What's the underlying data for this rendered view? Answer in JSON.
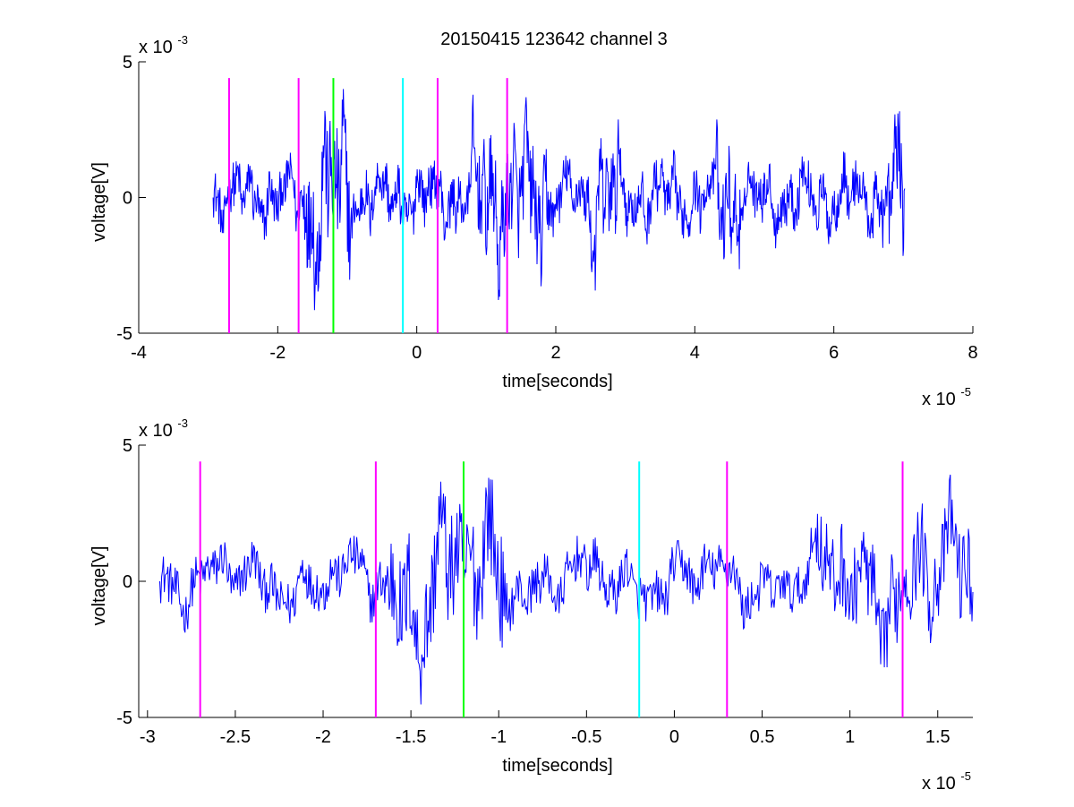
{
  "figure": {
    "title": "20150415 123642 channel 3"
  },
  "colors": {
    "signal": "#0000ff",
    "magenta_marker": "#ff00ff",
    "green_marker": "#00ff00",
    "cyan_marker": "#00ffff",
    "axes": "#000000",
    "background": "#ffffff"
  },
  "chart_data": [
    {
      "type": "line",
      "title": "20150415 123642 channel 3",
      "xlabel": "time[seconds]",
      "ylabel": "voltage[V]",
      "x_exponent_label": "x 10",
      "x_exponent": "-5",
      "y_exponent_label": "x 10",
      "y_exponent": "-3",
      "xlim": [
        -4,
        8
      ],
      "ylim": [
        -5,
        5
      ],
      "xticks": [
        "-4",
        "-2",
        "0",
        "2",
        "4",
        "6",
        "8"
      ],
      "xtick_values": [
        -4,
        -2,
        0,
        2,
        4,
        6,
        8
      ],
      "yticks": [
        "-5",
        "0",
        "5"
      ],
      "ytick_values": [
        -5,
        0,
        5
      ],
      "grid": false,
      "signal_range_x": [
        -2.93,
        7.02
      ],
      "signal_samples": 1200,
      "markers": [
        {
          "x": -2.7,
          "color": "magenta"
        },
        {
          "x": -1.7,
          "color": "magenta"
        },
        {
          "x": -1.2,
          "color": "green"
        },
        {
          "x": -0.2,
          "color": "cyan"
        },
        {
          "x": 0.3,
          "color": "magenta"
        },
        {
          "x": 1.3,
          "color": "magenta"
        }
      ],
      "marker_range_y": [
        -5,
        4.4
      ]
    },
    {
      "type": "line",
      "title": "",
      "xlabel": "time[seconds]",
      "ylabel": "voltage[V]",
      "x_exponent_label": "x 10",
      "x_exponent": "-5",
      "y_exponent_label": "x 10",
      "y_exponent": "-3",
      "xlim": [
        -3.05,
        1.7
      ],
      "ylim": [
        -5,
        5
      ],
      "xticks": [
        "-3",
        "-2.5",
        "-2",
        "-1.5",
        "-1",
        "-0.5",
        "0",
        "0.5",
        "1",
        "1.5"
      ],
      "xtick_values": [
        -3,
        -2.5,
        -2,
        -1.5,
        -1,
        -0.5,
        0,
        0.5,
        1,
        1.5
      ],
      "yticks": [
        "-5",
        "0",
        "5"
      ],
      "ytick_values": [
        -5,
        0,
        5
      ],
      "grid": false,
      "signal_range_x": [
        -2.93,
        1.7
      ],
      "signal_samples": 900,
      "markers": [
        {
          "x": -2.7,
          "color": "magenta"
        },
        {
          "x": -1.7,
          "color": "magenta"
        },
        {
          "x": -1.2,
          "color": "green"
        },
        {
          "x": -0.2,
          "color": "cyan"
        },
        {
          "x": 0.3,
          "color": "magenta"
        },
        {
          "x": 1.3,
          "color": "magenta"
        }
      ],
      "marker_range_y": [
        -5,
        4.4
      ]
    }
  ]
}
